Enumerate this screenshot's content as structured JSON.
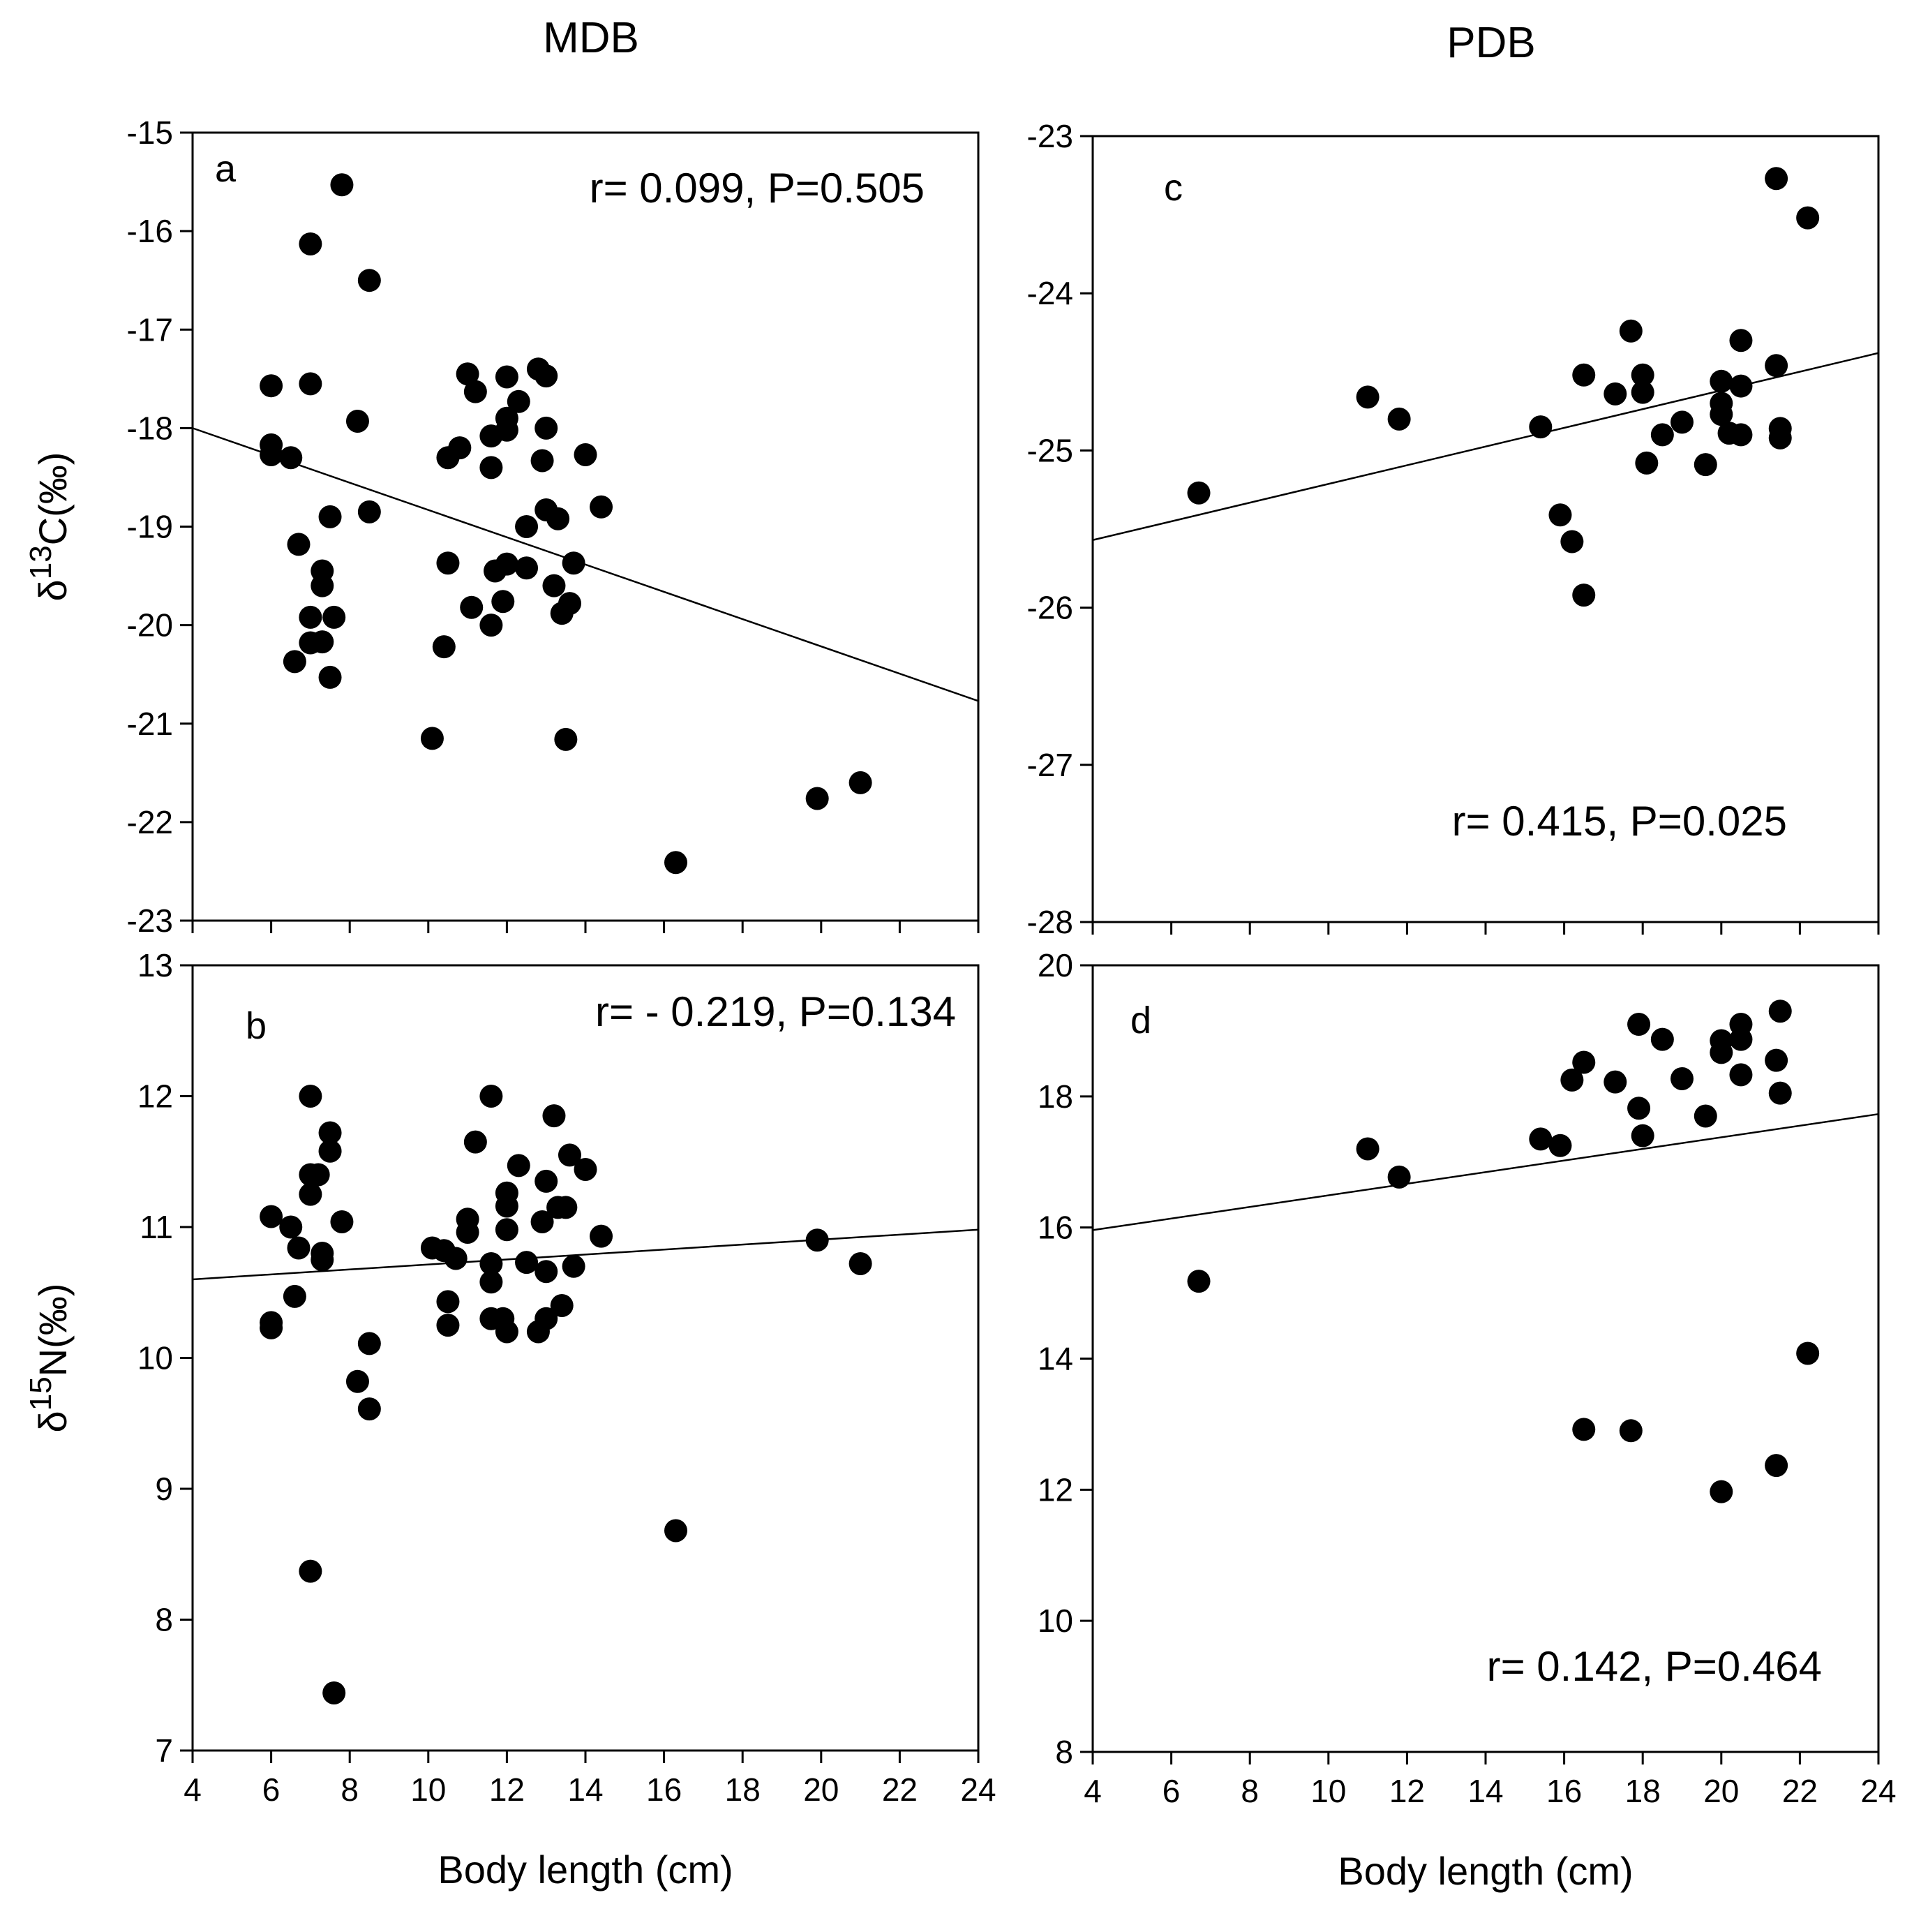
{
  "figure": {
    "column_titles": [
      "MDB",
      "PDB"
    ]
  },
  "chart_data": [
    {
      "type": "scatter",
      "panel": "a",
      "column": "MDB",
      "annotation": "r= 0.099, P=0.505",
      "xlabel": "",
      "ylabel_html": "δ13C(‰)",
      "ylabel": {
        "delta": "δ",
        "mass": "13",
        "element": "C(‰)"
      },
      "xlim": [
        4,
        24
      ],
      "ylim": [
        -23,
        -15
      ],
      "xticks": [
        4,
        6,
        8,
        10,
        12,
        14,
        16,
        18,
        20,
        22,
        24
      ],
      "show_xtick_labels": false,
      "yticks": [
        -23,
        -22,
        -21,
        -20,
        -19,
        -18,
        -17,
        -16,
        -15
      ],
      "fit": [
        [
          4,
          -18.0
        ],
        [
          24,
          -20.77
        ]
      ],
      "points": [
        [
          7.8,
          -15.53
        ],
        [
          7.0,
          -16.13
        ],
        [
          8.5,
          -16.5
        ],
        [
          6.0,
          -17.57
        ],
        [
          7.0,
          -17.55
        ],
        [
          8.2,
          -17.93
        ],
        [
          6.0,
          -18.17
        ],
        [
          6.0,
          -18.27
        ],
        [
          6.5,
          -18.3
        ],
        [
          7.5,
          -18.9
        ],
        [
          8.5,
          -18.85
        ],
        [
          6.7,
          -19.18
        ],
        [
          7.3,
          -19.45
        ],
        [
          7.3,
          -19.6
        ],
        [
          7.0,
          -19.92
        ],
        [
          7.6,
          -19.92
        ],
        [
          7.0,
          -20.18
        ],
        [
          7.3,
          -20.17
        ],
        [
          6.6,
          -20.37
        ],
        [
          7.5,
          -20.53
        ],
        [
          11.0,
          -17.45
        ],
        [
          11.2,
          -17.63
        ],
        [
          12.0,
          -17.48
        ],
        [
          12.8,
          -17.4
        ],
        [
          13.0,
          -17.47
        ],
        [
          12.3,
          -17.73
        ],
        [
          12.0,
          -17.9
        ],
        [
          12.0,
          -18.02
        ],
        [
          11.6,
          -18.08
        ],
        [
          10.8,
          -18.2
        ],
        [
          10.5,
          -18.3
        ],
        [
          11.6,
          -18.4
        ],
        [
          13.0,
          -18.0
        ],
        [
          12.9,
          -18.33
        ],
        [
          14.0,
          -18.27
        ],
        [
          12.5,
          -19.0
        ],
        [
          13.0,
          -18.83
        ],
        [
          13.3,
          -18.92
        ],
        [
          14.4,
          -18.8
        ],
        [
          10.5,
          -19.37
        ],
        [
          11.7,
          -19.45
        ],
        [
          12.0,
          -19.38
        ],
        [
          12.5,
          -19.42
        ],
        [
          13.7,
          -19.37
        ],
        [
          13.2,
          -19.6
        ],
        [
          11.1,
          -19.82
        ],
        [
          11.9,
          -19.76
        ],
        [
          13.4,
          -19.88
        ],
        [
          13.6,
          -19.78
        ],
        [
          11.6,
          -20.0
        ],
        [
          10.4,
          -20.22
        ],
        [
          10.1,
          -21.15
        ],
        [
          13.5,
          -21.16
        ],
        [
          16.3,
          -22.41
        ],
        [
          19.9,
          -21.76
        ],
        [
          21.0,
          -21.6
        ]
      ]
    },
    {
      "type": "scatter",
      "panel": "b",
      "column": "MDB",
      "annotation": "r= - 0.219, P=0.134",
      "xlabel": "Body length (cm)",
      "ylabel_html": "δ15N(‰)",
      "ylabel": {
        "delta": "δ",
        "mass": "15",
        "element": "N(‰)"
      },
      "xlim": [
        4,
        24
      ],
      "ylim": [
        7,
        13
      ],
      "xticks": [
        4,
        6,
        8,
        10,
        12,
        14,
        16,
        18,
        20,
        22,
        24
      ],
      "show_xtick_labels": true,
      "yticks": [
        7,
        8,
        9,
        10,
        11,
        12,
        13
      ],
      "fit": [
        [
          4,
          10.6
        ],
        [
          24,
          10.98
        ]
      ],
      "points": [
        [
          7.0,
          12.0
        ],
        [
          7.5,
          11.72
        ],
        [
          7.5,
          11.58
        ],
        [
          7.0,
          11.4
        ],
        [
          7.2,
          11.4
        ],
        [
          7.0,
          11.25
        ],
        [
          6.0,
          11.08
        ],
        [
          6.5,
          11.0
        ],
        [
          7.8,
          11.04
        ],
        [
          6.7,
          10.84
        ],
        [
          7.3,
          10.8
        ],
        [
          7.3,
          10.75
        ],
        [
          6.6,
          10.47
        ],
        [
          6.0,
          10.27
        ],
        [
          6.0,
          10.23
        ],
        [
          8.5,
          10.11
        ],
        [
          8.2,
          9.82
        ],
        [
          8.5,
          9.61
        ],
        [
          7.0,
          8.37
        ],
        [
          7.6,
          7.44
        ],
        [
          11.6,
          12.0
        ],
        [
          13.2,
          11.85
        ],
        [
          11.2,
          11.65
        ],
        [
          13.6,
          11.55
        ],
        [
          12.3,
          11.47
        ],
        [
          14.0,
          11.44
        ],
        [
          13.0,
          11.35
        ],
        [
          12.0,
          11.26
        ],
        [
          12.0,
          11.16
        ],
        [
          13.3,
          11.15
        ],
        [
          13.5,
          11.15
        ],
        [
          11.0,
          11.06
        ],
        [
          12.9,
          11.04
        ],
        [
          11.0,
          10.96
        ],
        [
          12.0,
          10.98
        ],
        [
          14.4,
          10.93
        ],
        [
          10.1,
          10.84
        ],
        [
          10.4,
          10.82
        ],
        [
          10.7,
          10.76
        ],
        [
          11.6,
          10.72
        ],
        [
          12.5,
          10.73
        ],
        [
          13.7,
          10.7
        ],
        [
          13.0,
          10.66
        ],
        [
          11.6,
          10.58
        ],
        [
          10.5,
          10.43
        ],
        [
          13.4,
          10.4
        ],
        [
          11.6,
          10.3
        ],
        [
          11.9,
          10.3
        ],
        [
          13.0,
          10.3
        ],
        [
          10.5,
          10.25
        ],
        [
          12.0,
          10.2
        ],
        [
          12.8,
          10.2
        ],
        [
          16.3,
          8.68
        ],
        [
          19.9,
          10.9
        ],
        [
          21.0,
          10.72
        ]
      ]
    },
    {
      "type": "scatter",
      "panel": "c",
      "column": "PDB",
      "annotation": "r= 0.415, P=0.025",
      "xlabel": "",
      "ylabel": null,
      "xlim": [
        4,
        24
      ],
      "ylim": [
        -28,
        -23
      ],
      "xticks": [
        4,
        6,
        8,
        10,
        12,
        14,
        16,
        18,
        20,
        22,
        24
      ],
      "show_xtick_labels": false,
      "yticks": [
        -28,
        -27,
        -26,
        -25,
        -24,
        -23
      ],
      "fit": [
        [
          4,
          -25.57
        ],
        [
          24,
          -24.38
        ]
      ],
      "points": [
        [
          6.7,
          -25.27
        ],
        [
          11.0,
          -24.66
        ],
        [
          11.8,
          -24.8
        ],
        [
          15.4,
          -24.85
        ],
        [
          15.9,
          -25.41
        ],
        [
          16.2,
          -25.58
        ],
        [
          16.5,
          -25.92
        ],
        [
          16.5,
          -24.52
        ],
        [
          17.3,
          -24.64
        ],
        [
          17.7,
          -24.24
        ],
        [
          18.0,
          -24.52
        ],
        [
          18.0,
          -24.63
        ],
        [
          18.1,
          -25.08
        ],
        [
          18.5,
          -24.9
        ],
        [
          19.0,
          -24.82
        ],
        [
          19.6,
          -25.09
        ],
        [
          20.0,
          -24.56
        ],
        [
          20.0,
          -24.7
        ],
        [
          20.0,
          -24.77
        ],
        [
          20.2,
          -24.89
        ],
        [
          20.5,
          -24.3
        ],
        [
          20.5,
          -24.59
        ],
        [
          20.5,
          -24.9
        ],
        [
          21.4,
          -24.46
        ],
        [
          21.5,
          -24.86
        ],
        [
          21.5,
          -24.92
        ],
        [
          21.4,
          -23.27
        ],
        [
          22.2,
          -23.52
        ]
      ]
    },
    {
      "type": "scatter",
      "panel": "d",
      "column": "PDB",
      "annotation": "r= 0.142, P=0.464",
      "xlabel": "Body length (cm)",
      "ylabel": null,
      "xlim": [
        4,
        24
      ],
      "ylim": [
        8,
        20
      ],
      "xticks": [
        4,
        6,
        8,
        10,
        12,
        14,
        16,
        18,
        20,
        22,
        24
      ],
      "show_xtick_labels": true,
      "yticks": [
        8,
        10,
        12,
        14,
        16,
        18,
        20
      ],
      "fit": [
        [
          4,
          15.96
        ],
        [
          24,
          17.73
        ]
      ],
      "points": [
        [
          6.7,
          15.18
        ],
        [
          11.0,
          17.2
        ],
        [
          11.8,
          16.77
        ],
        [
          15.4,
          17.35
        ],
        [
          15.9,
          17.25
        ],
        [
          16.2,
          18.25
        ],
        [
          16.5,
          18.52
        ],
        [
          16.5,
          12.92
        ],
        [
          17.3,
          18.22
        ],
        [
          17.7,
          12.9
        ],
        [
          17.9,
          19.1
        ],
        [
          17.9,
          17.82
        ],
        [
          18.0,
          17.4
        ],
        [
          18.5,
          18.87
        ],
        [
          19.0,
          18.27
        ],
        [
          19.6,
          17.7
        ],
        [
          20.0,
          18.85
        ],
        [
          20.0,
          18.67
        ],
        [
          20.0,
          11.97
        ],
        [
          20.5,
          19.1
        ],
        [
          20.5,
          18.87
        ],
        [
          20.5,
          18.33
        ],
        [
          21.4,
          18.55
        ],
        [
          21.5,
          18.05
        ],
        [
          21.5,
          19.3
        ],
        [
          21.4,
          12.37
        ],
        [
          22.2,
          14.08
        ]
      ]
    }
  ]
}
